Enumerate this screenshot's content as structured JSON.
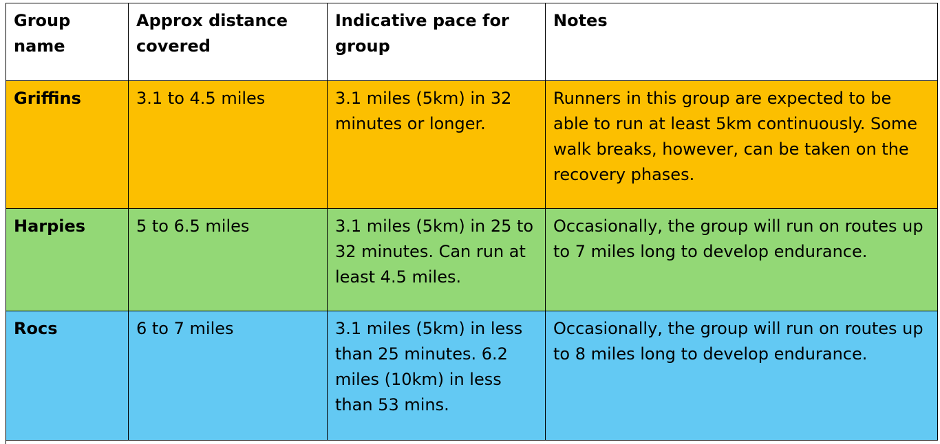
{
  "colors": {
    "griffins": "#fcbf00",
    "harpies": "#93d876",
    "rocs": "#63c9f3",
    "header": "#ffffff",
    "border": "#000000"
  },
  "table": {
    "headers": {
      "group_name": "Group name",
      "distance": "Approx distance covered",
      "pace": "Indicative pace for group",
      "notes": "Notes"
    },
    "rows": [
      {
        "name": "Griffins",
        "distance": "3.1 to 4.5 miles",
        "pace": "3.1 miles (5km) in 32 minutes or longer.",
        "notes": "Runners in this group are expected to be able to run at least 5km continuously. Some walk breaks, however, can be taken on the recovery phases."
      },
      {
        "name": "Harpies",
        "distance": "5 to 6.5 miles",
        "pace": "3.1 miles (5km) in 25 to 32 minutes. Can run at least 4.5 miles.",
        "notes": "Occasionally, the group will run on routes up to 7 miles long to develop endurance."
      },
      {
        "name": "Rocs",
        "distance": "6 to 7 miles",
        "pace": "3.1 miles (5km) in less than 25 minutes. 6.2 miles (10km) in less than 53 mins.",
        "notes": "Occasionally, the group will run on routes up to 8 miles long to develop endurance."
      }
    ]
  }
}
